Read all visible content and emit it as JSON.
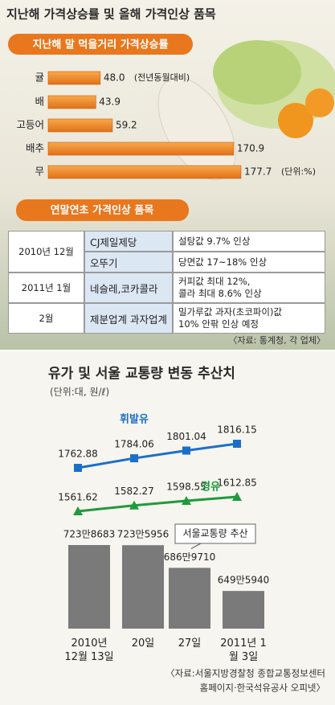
{
  "title": "지난해 가격상승률 및 올해 가격인상 품목",
  "chart_data": [
    {
      "type": "hbar",
      "title": "지난해 말 먹을거리 가격상승률",
      "categories": [
        "귤",
        "배",
        "고등어",
        "배추",
        "무"
      ],
      "values": [
        48.0,
        43.9,
        59.2,
        170.9,
        177.7
      ],
      "value_labels": [
        "48.0",
        "43.9",
        "59.2",
        "170.9",
        "177.7"
      ],
      "color": "#f28a22",
      "annotations": {
        "basis": "(전년동월대비)",
        "unit": "(단위:%)"
      }
    },
    {
      "type": "line_bar",
      "title": "유가 및 서울 교통량 변동 추산치",
      "subtitle": "(단위:대, 원/ℓ)",
      "categories": [
        "2010년 12월 13일",
        "20일",
        "27일",
        "2011년 1월 3일"
      ],
      "series": [
        {
          "name": "휘발유",
          "type": "line",
          "color": "#1c6fc8",
          "values": [
            1762.88,
            1784.06,
            1801.04,
            1816.15
          ]
        },
        {
          "name": "경유",
          "type": "line",
          "color": "#1f9a3c",
          "values": [
            1561.62,
            1582.27,
            1598.55,
            1612.85
          ]
        },
        {
          "name": "서울교통량 추산",
          "type": "bar",
          "color": "#7a7a7a",
          "values": [
            7238683,
            7235956,
            6869710,
            6495940
          ],
          "value_labels": [
            "723만8683",
            "723만5956",
            "686만9710",
            "649만5940"
          ]
        }
      ],
      "source": [
        "〈자료:서울지방경찰청 종합교통정보센터",
        "홈페이지·한국석유공사 오피넷〉"
      ]
    }
  ],
  "table": {
    "title": "연말연초 가격인상 품목",
    "groups": [
      {
        "date": "2010년 12월",
        "items": [
          {
            "company": "CJ제일제당",
            "detail": [
              "설탕값 9.7% 인상"
            ]
          },
          {
            "company": "오뚜기",
            "detail": [
              "당면값 17~18% 인상"
            ]
          }
        ]
      },
      {
        "date": "2011년 1월",
        "items": [
          {
            "company": "네슬레,코카콜라",
            "detail": [
              "커피값 최대 12%,",
              "콜라 최대 8.6% 인상"
            ]
          }
        ]
      },
      {
        "date": "2월",
        "items": [
          {
            "company": "제분업계 과자업계",
            "detail": [
              "밀가루값 과자(초코파이)값",
              "10% 안팎 인상 예정"
            ]
          }
        ]
      }
    ],
    "source": "〈자료: 통계청, 각 업체〉"
  }
}
